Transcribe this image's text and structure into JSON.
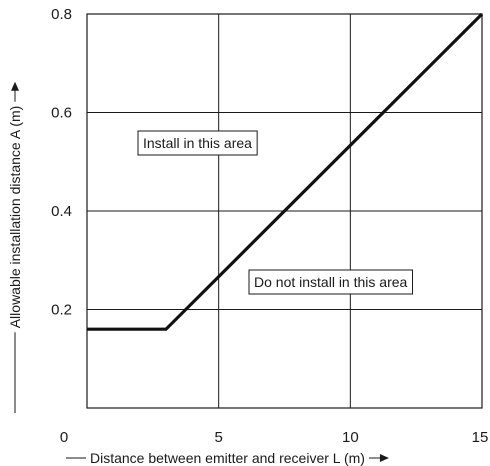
{
  "chart_data": {
    "type": "line",
    "xlabel": "Distance between emitter and receiver L (m)",
    "ylabel": "Allowable installation distance A (m)",
    "xlim": [
      0,
      15
    ],
    "ylim": [
      0,
      0.8
    ],
    "x_ticks": [
      0,
      5,
      10,
      15
    ],
    "y_ticks": [
      0.2,
      0.4,
      0.6,
      0.8
    ],
    "x_tick_labels": [
      "0",
      "5",
      "10",
      "15"
    ],
    "y_tick_labels": [
      "0.2",
      "0.4",
      "0.6",
      "0.8"
    ],
    "grid": true,
    "series": [
      {
        "x": [
          0,
          3,
          15
        ],
        "y": [
          0.16,
          0.16,
          0.8
        ],
        "color": "#111111"
      }
    ],
    "annotations": [
      {
        "text": "Install in this area",
        "region": "upper-left"
      },
      {
        "text": "Do not install in this area",
        "region": "lower-right"
      }
    ]
  }
}
